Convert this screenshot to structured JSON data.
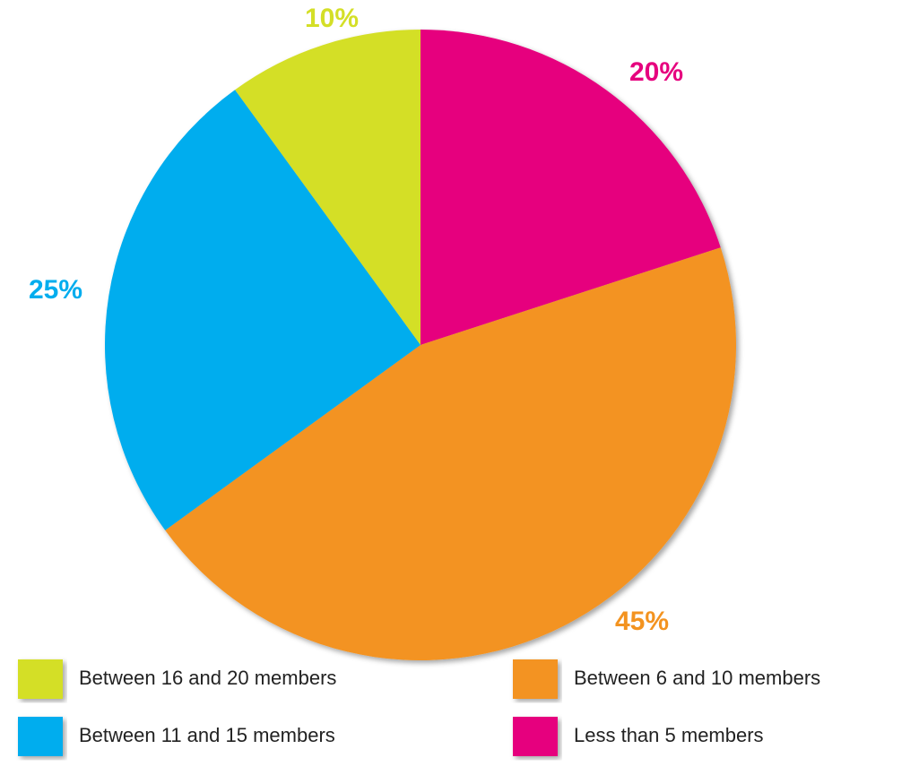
{
  "chart_data": {
    "type": "pie",
    "categories": [
      "Less than 5 members",
      "Between 6 and 10 members",
      "Between 11 and 15 members",
      "Between 16 and 20 members"
    ],
    "values": [
      20,
      45,
      25,
      10
    ],
    "value_labels": [
      "20%",
      "45%",
      "25%",
      "10%"
    ],
    "colors": [
      "#e6007e",
      "#f39320",
      "#00adee",
      "#d4df27"
    ]
  }
}
